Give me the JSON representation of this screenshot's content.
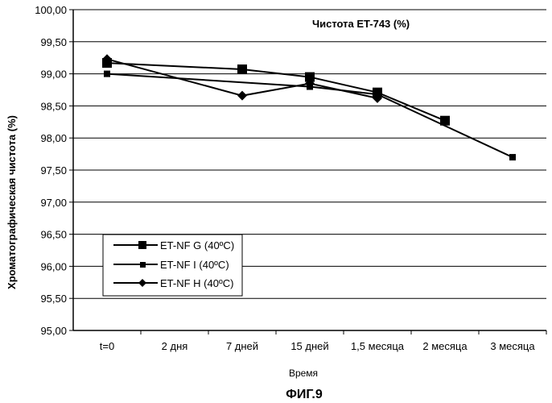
{
  "figure_caption": "ФИГ.9",
  "chart_data": {
    "type": "line",
    "title": "Чистота ET-743 (%)",
    "xlabel": "Время",
    "ylabel": "Хроматографическая чистота (%)",
    "categories": [
      "t=0",
      "2 дня",
      "7 дней",
      "15 дней",
      "1,5 месяца",
      "2 месяца",
      "3 месяца"
    ],
    "ylim": [
      95.0,
      100.0
    ],
    "yticks": [
      "95,00",
      "95,50",
      "96,00",
      "96,50",
      "97,00",
      "97,50",
      "98,00",
      "98,50",
      "99,00",
      "99,50",
      "100,00"
    ],
    "grid": true,
    "legend_position": "bottom-left",
    "series": [
      {
        "name": "ET-NF G (40ºC)",
        "marker": "square-large",
        "values": [
          99.17,
          null,
          99.07,
          98.95,
          98.71,
          98.27,
          null
        ]
      },
      {
        "name": "ET-NF I (40ºC)",
        "marker": "square-small",
        "values": [
          99.0,
          null,
          null,
          98.8,
          98.68,
          null,
          97.7
        ]
      },
      {
        "name": "ET-NF H (40ºC)",
        "marker": "diamond",
        "values": [
          99.23,
          null,
          98.66,
          98.85,
          98.62,
          null,
          null
        ]
      }
    ]
  }
}
